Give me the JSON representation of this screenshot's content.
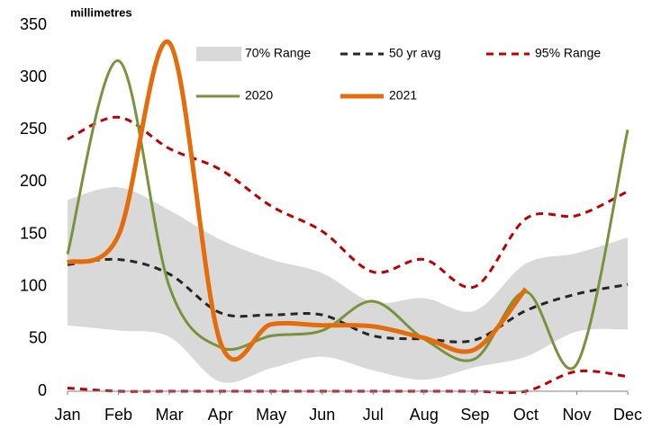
{
  "chart_data": {
    "type": "line",
    "y_label": "millimetres",
    "categories": [
      "Jan",
      "Feb",
      "Mar",
      "Apr",
      "May",
      "Jun",
      "Jul",
      "Aug",
      "Sep",
      "Oct",
      "Nov",
      "Dec"
    ],
    "ylim": [
      0,
      350
    ],
    "yticks": [
      0,
      50,
      100,
      150,
      200,
      250,
      300,
      350
    ],
    "series": [
      {
        "name": "70% Range",
        "kind": "band",
        "color": "#d9d9d9",
        "high": [
          183,
          195,
          173,
          145,
          126,
          113,
          85,
          89,
          77,
          122,
          132,
          147
        ],
        "low": [
          63,
          58,
          52,
          9,
          22,
          33,
          20,
          11,
          23,
          33,
          57,
          59
        ]
      },
      {
        "name": "50 yr avg",
        "kind": "line",
        "dashed": true,
        "line_width": 3,
        "color": "#262626",
        "values": [
          121,
          126,
          112,
          75,
          73,
          73,
          53,
          50,
          49,
          77,
          93,
          102
        ]
      },
      {
        "name": "95% Range",
        "kind": "lines",
        "dashed": true,
        "line_width": 3,
        "color": "#c00000",
        "high": [
          241,
          262,
          232,
          212,
          177,
          153,
          114,
          126,
          100,
          165,
          168,
          191
        ],
        "low": [
          3,
          0,
          0,
          0,
          0,
          0,
          0,
          0,
          0,
          0,
          19,
          14
        ]
      },
      {
        "name": "2020",
        "kind": "line",
        "dashed": false,
        "line_width": 3,
        "color": "#77933c",
        "values": [
          131,
          316,
          100,
          42,
          53,
          58,
          86,
          50,
          31,
          95,
          26,
          250
        ]
      },
      {
        "name": "2021",
        "kind": "line",
        "dashed": false,
        "line_width": 5,
        "color": "#e46c0a",
        "values": [
          123,
          149,
          333,
          47,
          64,
          63,
          62,
          51,
          40,
          98,
          null,
          null
        ]
      }
    ]
  }
}
